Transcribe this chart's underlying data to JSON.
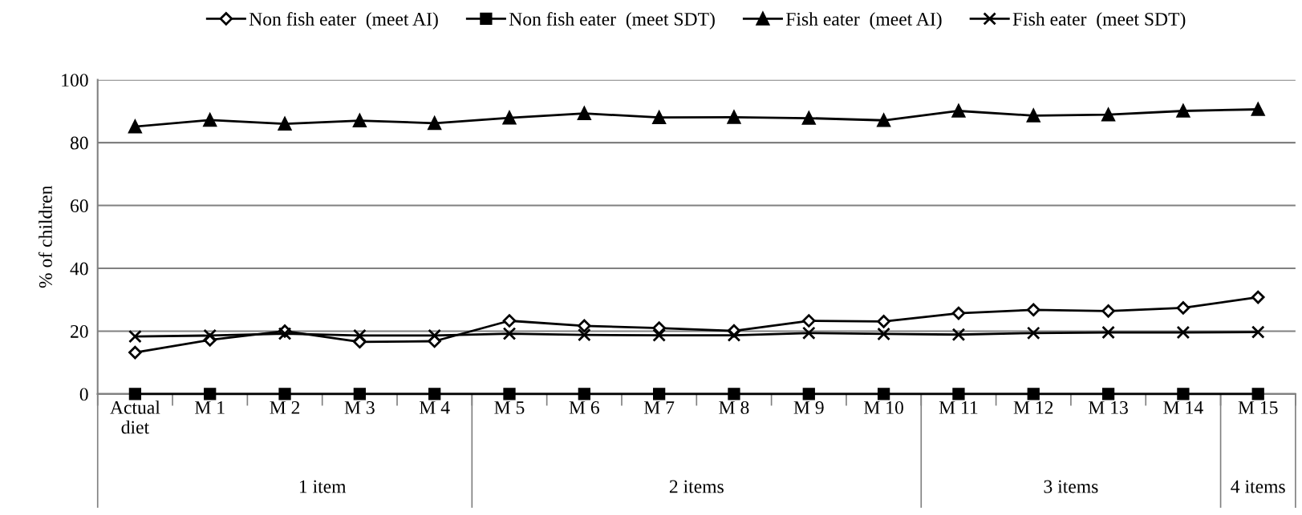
{
  "chart_data": {
    "type": "line",
    "ylabel": "% of children",
    "categories": [
      "Actual\ndiet",
      "M 1",
      "M 2",
      "M 3",
      "M 4",
      "M 5",
      "M 6",
      "M 7",
      "M 8",
      "M 9",
      "M 10",
      "M 11",
      "M 12",
      "M 13",
      "M 14",
      "M 15"
    ],
    "series": [
      {
        "name": "Non fish eater  (meet AI)",
        "color": "#000000",
        "marker": "diamond",
        "values": [
          13.2,
          17.2,
          20.0,
          16.6,
          16.8,
          23.3,
          21.7,
          21.0,
          20.1,
          23.3,
          23.1,
          25.7,
          26.8,
          26.4,
          27.4,
          30.8
        ]
      },
      {
        "name": "Non fish eater  (meet SDT)",
        "color": "#000000",
        "marker": "square",
        "values": [
          0,
          0,
          0,
          0,
          0,
          0,
          0,
          0,
          0,
          0,
          0,
          0,
          0,
          0,
          0,
          0
        ]
      },
      {
        "name": "Fish eater  (meet AI)",
        "color": "#000000",
        "marker": "triangle",
        "values": [
          85.1,
          87.2,
          86.0,
          87.0,
          86.2,
          87.9,
          89.3,
          88.0,
          88.1,
          87.8,
          87.1,
          90.1,
          88.6,
          88.9,
          90.1,
          90.6
        ]
      },
      {
        "name": "Fish eater  (meet SDT)",
        "color": "#000000",
        "marker": "cross",
        "values": [
          18.3,
          18.6,
          19.2,
          18.6,
          18.6,
          19.2,
          18.8,
          18.7,
          18.7,
          19.4,
          19.1,
          18.9,
          19.4,
          19.6,
          19.6,
          19.7
        ]
      }
    ],
    "ylim": [
      0,
      100
    ],
    "yticks": [
      0,
      20,
      40,
      60,
      80,
      100
    ],
    "grid": "y",
    "legend": "top",
    "annotations": [
      "1 item",
      "2 items",
      "3 items",
      "4 items"
    ]
  }
}
